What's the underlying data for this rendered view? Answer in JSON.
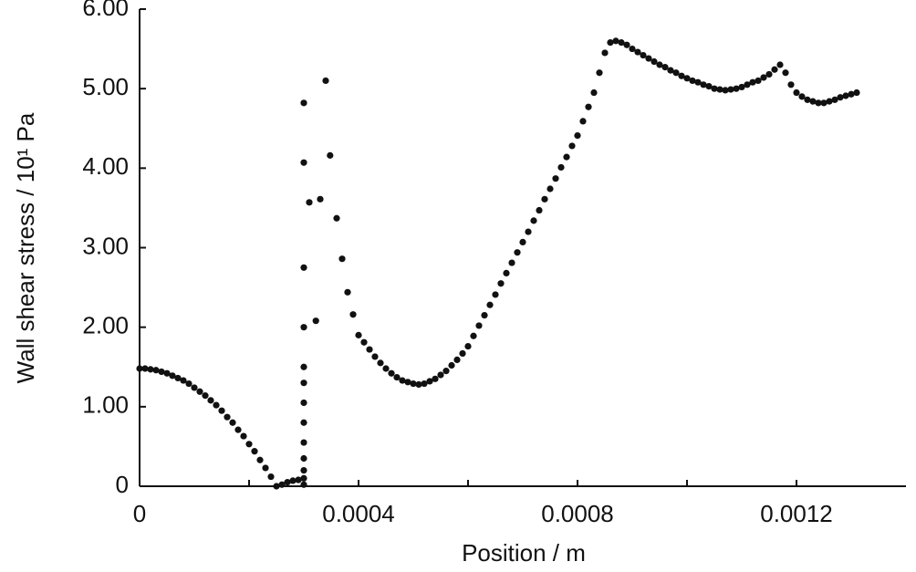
{
  "chart_data": {
    "type": "scatter",
    "xlabel": "Position / m",
    "ylabel": "Wall shear stress / 10¹ Pa",
    "color": "#111111",
    "xlim": [
      0,
      0.0014
    ],
    "xticks": [
      0,
      0.0004,
      0.0008,
      0.0012
    ],
    "xminorticks": [
      0.0002,
      0.0006,
      0.001
    ],
    "ylim": [
      0,
      6
    ],
    "yticks": [
      0,
      {
        "value": 1,
        "label": "1.00"
      },
      {
        "value": 2,
        "label": "2.00"
      },
      {
        "value": 3,
        "label": "3.00"
      },
      {
        "value": 4,
        "label": "4.00"
      },
      {
        "value": 5,
        "label": "5.00"
      },
      {
        "value": 6,
        "label": "6.00"
      }
    ],
    "grid": false,
    "x": [
      0,
      1e-05,
      2e-05,
      3e-05,
      4e-05,
      5e-05,
      6e-05,
      7e-05,
      8e-05,
      9e-05,
      0.0001,
      0.00011,
      0.00012,
      0.00013,
      0.00014,
      0.00015,
      0.00016,
      0.00017,
      0.00018,
      0.00019,
      0.0002,
      0.00021,
      0.00022,
      0.00023,
      0.00024,
      0.00025,
      0.00026,
      0.00027,
      0.00028,
      0.00029,
      0.0003,
      0.0003,
      0.0003,
      0.0003,
      0.0003,
      0.0003,
      0.0003,
      0.0003,
      0.0003,
      0.0003,
      0.0003,
      0.0003,
      0.0003,
      0.00031,
      0.000322,
      0.00033,
      0.00034,
      0.000348,
      0.00036,
      0.00037,
      0.00038,
      0.00039,
      0.0004,
      0.00041,
      0.00042,
      0.00043,
      0.00044,
      0.00045,
      0.00046,
      0.00047,
      0.00048,
      0.00049,
      0.0005,
      0.00051,
      0.00052,
      0.00053,
      0.00054,
      0.00055,
      0.00056,
      0.00057,
      0.00058,
      0.00059,
      0.0006,
      0.00061,
      0.00062,
      0.00063,
      0.00064,
      0.00065,
      0.00066,
      0.00067,
      0.00068,
      0.00069,
      0.0007,
      0.00071,
      0.00072,
      0.00073,
      0.00074,
      0.00075,
      0.00076,
      0.00077,
      0.00078,
      0.00079,
      0.0008,
      0.00081,
      0.00082,
      0.00083,
      0.00084,
      0.00085,
      0.00086,
      0.00087,
      0.00088,
      0.00089,
      0.0009,
      0.00091,
      0.00092,
      0.00093,
      0.00094,
      0.00095,
      0.00096,
      0.00097,
      0.00098,
      0.00099,
      0.001,
      0.00101,
      0.00102,
      0.00103,
      0.00104,
      0.00105,
      0.00106,
      0.00107,
      0.00108,
      0.00109,
      0.0011,
      0.00111,
      0.00112,
      0.00113,
      0.00114,
      0.00115,
      0.00116,
      0.00117,
      0.00118,
      0.00119,
      0.0012,
      0.00121,
      0.00122,
      0.00123,
      0.00124,
      0.00125,
      0.00126,
      0.00127,
      0.00128,
      0.00129,
      0.0013,
      0.00131
    ],
    "values": [
      1.48,
      1.48,
      1.47,
      1.46,
      1.44,
      1.42,
      1.39,
      1.36,
      1.33,
      1.29,
      1.24,
      1.19,
      1.14,
      1.08,
      1.02,
      0.95,
      0.87,
      0.8,
      0.71,
      0.63,
      0.53,
      0.44,
      0.33,
      0.23,
      0.12,
      0.0,
      0.02,
      0.05,
      0.07,
      0.08,
      0.02,
      0.1,
      0.2,
      0.35,
      0.55,
      0.8,
      1.05,
      1.3,
      1.5,
      2.0,
      2.75,
      4.07,
      4.82,
      3.57,
      2.08,
      3.61,
      5.1,
      4.16,
      3.37,
      2.86,
      2.44,
      2.16,
      1.9,
      1.81,
      1.72,
      1.63,
      1.55,
      1.48,
      1.42,
      1.37,
      1.33,
      1.31,
      1.29,
      1.28,
      1.29,
      1.32,
      1.35,
      1.4,
      1.45,
      1.52,
      1.59,
      1.67,
      1.76,
      1.89,
      2.02,
      2.15,
      2.28,
      2.41,
      2.55,
      2.68,
      2.81,
      2.94,
      3.07,
      3.2,
      3.34,
      3.47,
      3.61,
      3.74,
      3.87,
      4.01,
      4.14,
      4.28,
      4.41,
      4.59,
      4.77,
      4.95,
      5.2,
      5.45,
      5.58,
      5.6,
      5.58,
      5.55,
      5.5,
      5.46,
      5.42,
      5.38,
      5.34,
      5.3,
      5.27,
      5.23,
      5.2,
      5.16,
      5.13,
      5.1,
      5.08,
      5.05,
      5.03,
      5.0,
      4.99,
      4.98,
      4.99,
      5.0,
      5.02,
      5.05,
      5.08,
      5.1,
      5.14,
      5.18,
      5.24,
      5.3,
      5.2,
      5.05,
      4.95,
      4.9,
      4.86,
      4.84,
      4.82,
      4.82,
      4.84,
      4.86,
      4.89,
      4.91,
      4.93,
      4.95
    ]
  }
}
